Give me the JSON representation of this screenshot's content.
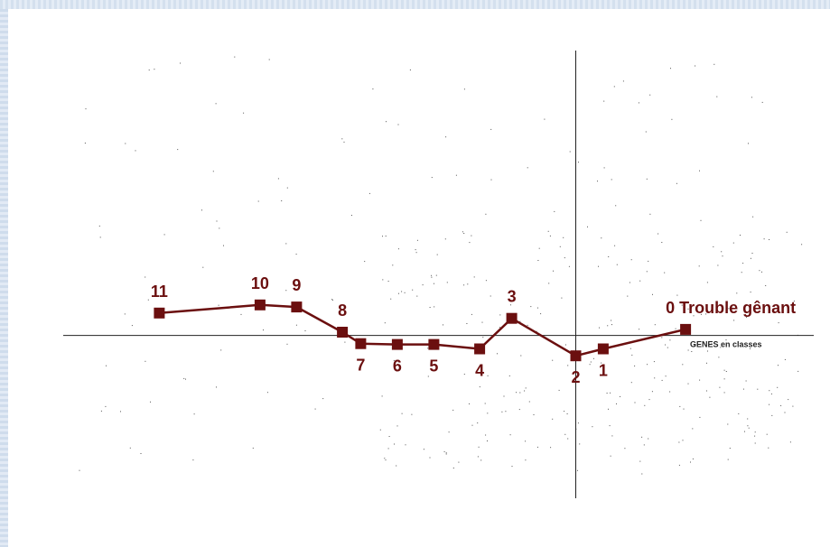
{
  "chart_data": {
    "type": "line",
    "axis_label": "GENES en classes",
    "line_color": "#6b0f0f",
    "axis_color": "#222222",
    "grid": false,
    "points": [
      {
        "label": "11",
        "x": -4.55,
        "y": 0.55
      },
      {
        "label": "10",
        "x": -3.45,
        "y": 0.75
      },
      {
        "label": "9",
        "x": -3.05,
        "y": 0.7
      },
      {
        "label": "8",
        "x": -2.55,
        "y": 0.08
      },
      {
        "label": "7",
        "x": -2.35,
        "y": -0.2
      },
      {
        "label": "6",
        "x": -1.95,
        "y": -0.22
      },
      {
        "label": "5",
        "x": -1.55,
        "y": -0.22
      },
      {
        "label": "4",
        "x": -1.05,
        "y": -0.33
      },
      {
        "label": "3",
        "x": -0.7,
        "y": 0.42
      },
      {
        "label": "2",
        "x": 0.0,
        "y": -0.5
      },
      {
        "label": "1",
        "x": 0.3,
        "y": -0.33
      },
      {
        "label": "0 Trouble gênant",
        "x": 1.2,
        "y": 0.15
      }
    ],
    "xlim": [
      -5.6,
      2.6
    ],
    "ylim": [
      -4.0,
      7.0
    ]
  }
}
